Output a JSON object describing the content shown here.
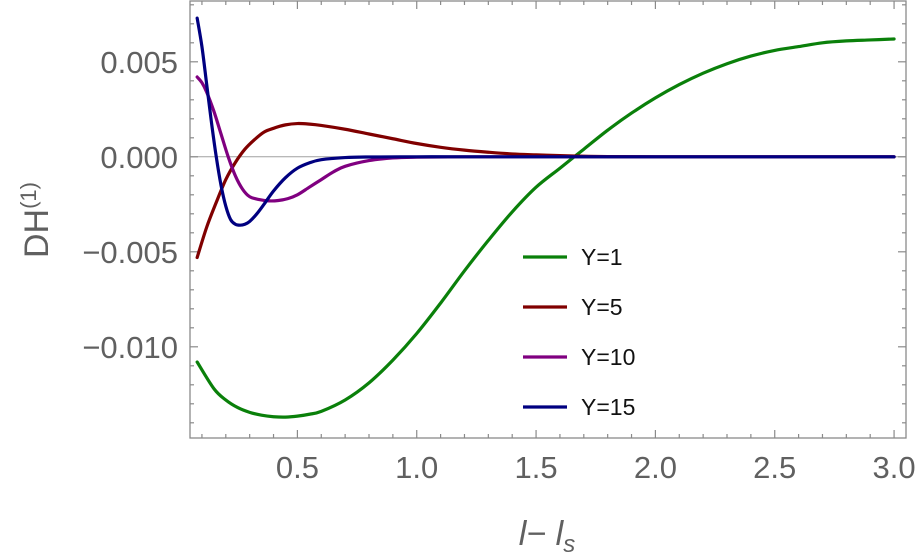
{
  "chart_data": {
    "type": "line",
    "title": "",
    "xlabel": "l− l",
    "xlabel_sub": "s",
    "ylabel": "DH",
    "ylabel_sup": "(1)",
    "xlim": [
      0.05,
      3.05
    ],
    "ylim": [
      -0.0148,
      0.0082
    ],
    "x_ticks": [
      0.5,
      1.0,
      1.5,
      2.0,
      2.5,
      3.0
    ],
    "x_tick_labels": [
      "0.5",
      "1.0",
      "1.5",
      "2.0",
      "2.5",
      "3.0"
    ],
    "y_ticks": [
      0.005,
      0.0,
      -0.005,
      -0.01
    ],
    "y_tick_labels": [
      "0.005",
      "0.000",
      "−0.005",
      "−0.010"
    ],
    "grid": false,
    "legend_position": "center-right",
    "series": [
      {
        "name": "Y=1",
        "color": "#0a800a",
        "x": [
          0.08,
          0.15,
          0.2,
          0.25,
          0.3,
          0.35,
          0.4,
          0.45,
          0.5,
          0.55,
          0.6,
          0.7,
          0.8,
          0.9,
          1.0,
          1.1,
          1.2,
          1.3,
          1.4,
          1.5,
          1.6,
          1.7,
          1.8,
          1.9,
          2.0,
          2.1,
          2.2,
          2.3,
          2.4,
          2.5,
          2.6,
          2.7,
          2.8,
          2.9,
          3.0
        ],
        "y": [
          -0.0108,
          -0.0122,
          -0.0128,
          -0.0132,
          -0.01345,
          -0.0136,
          -0.01368,
          -0.0137,
          -0.01365,
          -0.01355,
          -0.0134,
          -0.0128,
          -0.0119,
          -0.0107,
          -0.0093,
          -0.0077,
          -0.006,
          -0.0044,
          -0.0029,
          -0.0016,
          -0.0006,
          0.0004,
          0.0014,
          0.0023,
          0.0031,
          0.0038,
          0.0044,
          0.0049,
          0.0053,
          0.0056,
          0.0058,
          0.006,
          0.0061,
          0.00615,
          0.0062
        ]
      },
      {
        "name": "Y=5",
        "color": "#800000",
        "x": [
          0.08,
          0.12,
          0.16,
          0.2,
          0.24,
          0.28,
          0.32,
          0.36,
          0.4,
          0.45,
          0.5,
          0.55,
          0.6,
          0.7,
          0.8,
          0.9,
          1.0,
          1.1,
          1.2,
          1.3,
          1.4,
          1.5,
          1.6,
          1.7,
          1.8,
          2.0,
          2.2,
          2.5,
          3.0
        ],
        "y": [
          -0.0053,
          -0.0037,
          -0.0024,
          -0.0012,
          -0.0003,
          0.0004,
          0.0009,
          0.0013,
          0.0015,
          0.00168,
          0.00175,
          0.00172,
          0.00165,
          0.00145,
          0.0012,
          0.00095,
          0.0007,
          0.0005,
          0.00035,
          0.00024,
          0.00015,
          0.0001,
          6e-05,
          3e-05,
          1e-05,
          0.0,
          0.0,
          0.0,
          0.0
        ]
      },
      {
        "name": "Y=10",
        "color": "#800080",
        "x": [
          0.08,
          0.1,
          0.12,
          0.15,
          0.18,
          0.21,
          0.24,
          0.27,
          0.3,
          0.34,
          0.38,
          0.42,
          0.46,
          0.5,
          0.55,
          0.6,
          0.65,
          0.7,
          0.8,
          0.9,
          1.0,
          1.2,
          1.5,
          2.0,
          2.5,
          3.0
        ],
        "y": [
          0.0042,
          0.0039,
          0.0034,
          0.0024,
          0.0012,
          0.0,
          -0.001,
          -0.0017,
          -0.0021,
          -0.00225,
          -0.00232,
          -0.0023,
          -0.0022,
          -0.002,
          -0.0016,
          -0.0012,
          -0.0008,
          -0.0005,
          -0.0002,
          -6e-05,
          -2e-05,
          0.0,
          0.0,
          0.0,
          0.0,
          0.0
        ]
      },
      {
        "name": "Y=15",
        "color": "#000080",
        "x": [
          0.08,
          0.1,
          0.12,
          0.14,
          0.16,
          0.18,
          0.2,
          0.22,
          0.24,
          0.26,
          0.28,
          0.3,
          0.33,
          0.36,
          0.4,
          0.45,
          0.5,
          0.55,
          0.6,
          0.7,
          0.8,
          1.0,
          1.2,
          1.5,
          2.0,
          2.5,
          3.0
        ],
        "y": [
          0.0073,
          0.0058,
          0.0038,
          0.0018,
          0.0,
          -0.0015,
          -0.0026,
          -0.0033,
          -0.00355,
          -0.0036,
          -0.00355,
          -0.0034,
          -0.003,
          -0.0025,
          -0.0018,
          -0.0011,
          -0.0006,
          -0.00032,
          -0.00015,
          -4e-05,
          -1e-05,
          0.0,
          0.0,
          0.0,
          0.0,
          0.0,
          0.0
        ]
      }
    ]
  }
}
